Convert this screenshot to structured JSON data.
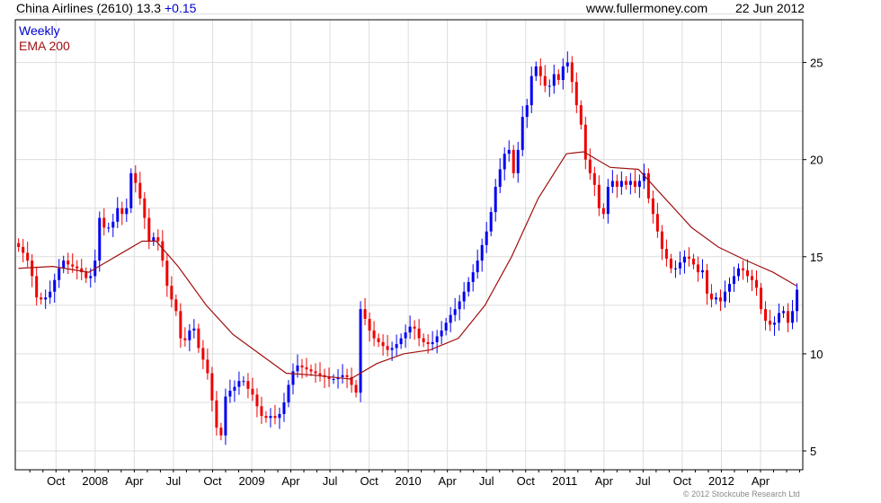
{
  "header": {
    "name": "China Airlines (2610) 13.3",
    "change": "+0.15",
    "site": "www.fullermoney.com",
    "date": "22 Jun 2012"
  },
  "legend": {
    "weekly": "Weekly",
    "ema": "EMA 200"
  },
  "footer": "© 2012 Stockcube Research Ltd",
  "colors": {
    "up": "#0000ee",
    "down": "#ee0000",
    "ema": "#a01010",
    "grid": "#dddddd"
  },
  "chart_data": {
    "type": "candlestick",
    "title": "China Airlines (2610) weekly",
    "xlim": [
      2007.49,
      2012.52
    ],
    "ylim": [
      4.03,
      27.2
    ],
    "yticks": [
      5,
      10,
      15,
      20,
      25
    ],
    "xticks": [
      {
        "label": "Oct",
        "x": 2007.75
      },
      {
        "label": "2008",
        "x": 2008.0
      },
      {
        "label": "Apr",
        "x": 2008.25
      },
      {
        "label": "Jul",
        "x": 2008.5
      },
      {
        "label": "Oct",
        "x": 2008.75
      },
      {
        "label": "2009",
        "x": 2009.0
      },
      {
        "label": "Apr",
        "x": 2009.25
      },
      {
        "label": "Jul",
        "x": 2009.5
      },
      {
        "label": "Oct",
        "x": 2009.75
      },
      {
        "label": "2010",
        "x": 2010.0
      },
      {
        "label": "Apr",
        "x": 2010.25
      },
      {
        "label": "Jul",
        "x": 2010.5
      },
      {
        "label": "Oct",
        "x": 2010.75
      },
      {
        "label": "2011",
        "x": 2011.0
      },
      {
        "label": "Apr",
        "x": 2011.25
      },
      {
        "label": "Jul",
        "x": 2011.5
      },
      {
        "label": "Oct",
        "x": 2011.75
      },
      {
        "label": "2012",
        "x": 2012.0
      },
      {
        "label": "Apr",
        "x": 2012.25
      }
    ],
    "start_year": 2007.511,
    "step_years": 0.02874,
    "close": [
      15.5,
      15.2,
      14.8,
      14.0,
      12.9,
      12.8,
      12.9,
      13.2,
      13.8,
      14.4,
      14.8,
      14.6,
      14.5,
      14.4,
      14.2,
      13.9,
      14.0,
      14.8,
      17.0,
      16.5,
      16.5,
      16.8,
      17.5,
      17.2,
      17.5,
      19.3,
      18.8,
      18.0,
      17.0,
      15.8,
      16.0,
      15.8,
      14.8,
      13.5,
      12.8,
      12.2,
      10.8,
      10.7,
      11.2,
      11.3,
      10.3,
      9.7,
      9.0,
      7.6,
      6.2,
      5.8,
      7.8,
      8.1,
      8.3,
      8.6,
      8.6,
      8.2,
      7.9,
      7.3,
      6.8,
      6.7,
      6.8,
      6.7,
      6.9,
      7.5,
      8.4,
      9.1,
      9.4,
      9.3,
      9.2,
      9.1,
      9.0,
      8.9,
      8.8,
      8.7,
      8.7,
      8.8,
      8.9,
      8.8,
      8.4,
      8.0,
      12.3,
      11.8,
      11.2,
      10.8,
      10.6,
      10.4,
      10.2,
      10.3,
      10.5,
      10.8,
      11.1,
      11.4,
      11.3,
      10.8,
      10.6,
      10.5,
      10.6,
      10.9,
      11.2,
      11.6,
      12.0,
      12.3,
      12.7,
      13.2,
      13.7,
      14.2,
      14.8,
      15.6,
      16.3,
      17.3,
      18.6,
      19.5,
      20.3,
      20.5,
      19.3,
      20.5,
      22.2,
      22.8,
      24.3,
      24.8,
      24.3,
      23.8,
      23.8,
      24.4,
      24.1,
      24.8,
      25.0,
      24.0,
      22.8,
      21.8,
      20.0,
      19.3,
      18.7,
      17.5,
      17.2,
      18.6,
      18.9,
      18.6,
      18.9,
      18.7,
      18.9,
      18.6,
      18.9,
      19.3,
      18.0,
      17.2,
      16.3,
      15.4,
      14.9,
      14.4,
      14.4,
      14.7,
      15.0,
      14.9,
      14.6,
      14.2,
      14.3,
      13.1,
      12.8,
      12.9,
      12.7,
      13.2,
      13.6,
      14.0,
      14.4,
      14.3,
      14.0,
      13.8,
      13.4,
      12.3,
      11.7,
      11.5,
      11.6,
      12.1,
      12.2,
      11.6,
      12.2,
      13.3
    ],
    "ema200": [
      [
        2007.51,
        14.4
      ],
      [
        2007.73,
        14.5
      ],
      [
        2007.96,
        14.2
      ],
      [
        2008.13,
        15.0
      ],
      [
        2008.3,
        15.8
      ],
      [
        2008.39,
        15.8
      ],
      [
        2008.53,
        14.5
      ],
      [
        2008.71,
        12.5
      ],
      [
        2008.88,
        11.0
      ],
      [
        2009.05,
        10.0
      ],
      [
        2009.22,
        9.0
      ],
      [
        2009.4,
        8.9
      ],
      [
        2009.63,
        8.7
      ],
      [
        2009.8,
        9.5
      ],
      [
        2009.97,
        10.0
      ],
      [
        2010.14,
        10.2
      ],
      [
        2010.32,
        10.8
      ],
      [
        2010.49,
        12.5
      ],
      [
        2010.66,
        15.0
      ],
      [
        2010.83,
        18.0
      ],
      [
        2011.01,
        20.3
      ],
      [
        2011.12,
        20.4
      ],
      [
        2011.29,
        19.6
      ],
      [
        2011.47,
        19.5
      ],
      [
        2011.64,
        18.0
      ],
      [
        2011.81,
        16.5
      ],
      [
        2011.98,
        15.5
      ],
      [
        2012.16,
        14.8
      ],
      [
        2012.33,
        14.2
      ],
      [
        2012.48,
        13.5
      ]
    ]
  }
}
